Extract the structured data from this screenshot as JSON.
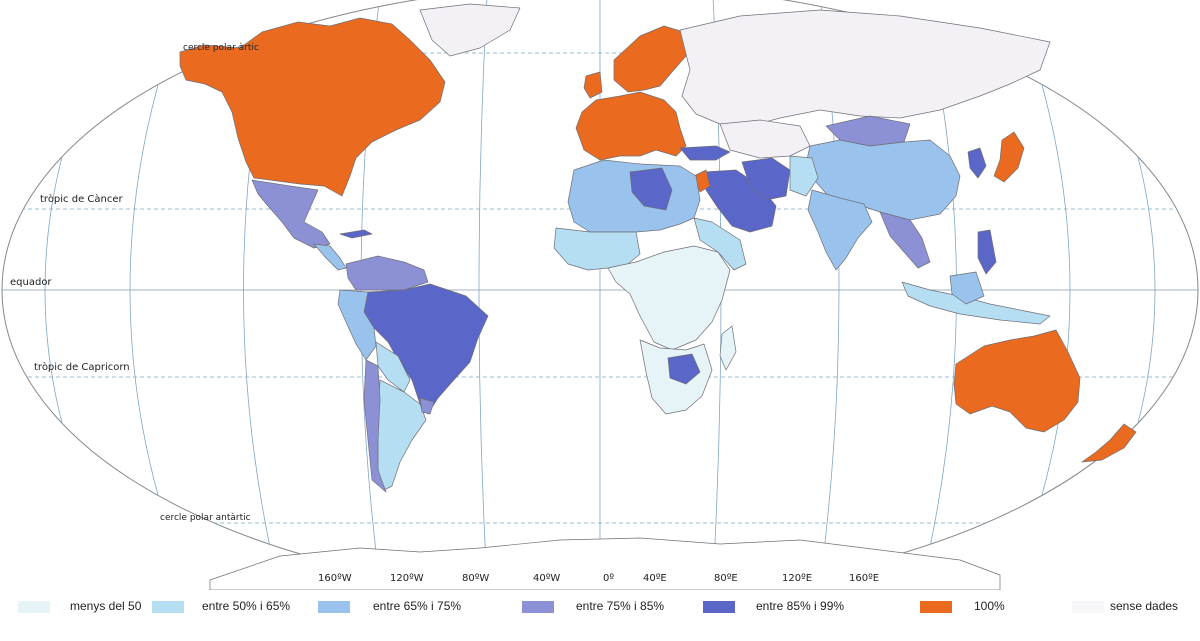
{
  "map": {
    "lines": {
      "arctic": "cercle polar àrtic",
      "cancer": "tròpic de Càncer",
      "equator": "equador",
      "capricorn": "tròpic de Capricorn",
      "antarctic": "cercle polar antàrtic"
    },
    "longitudes": [
      "160ºW",
      "120ºW",
      "80ºW",
      "40ºW",
      "0º",
      "40ºE",
      "80ºE",
      "120ºE",
      "160ºE"
    ]
  },
  "legend": {
    "items": [
      {
        "label": "menys del 50",
        "color": "#e6f3f7"
      },
      {
        "label": "entre 50% i 65%",
        "color": "#b6def2"
      },
      {
        "label": "entre 65% i 75%",
        "color": "#99c3ec"
      },
      {
        "label": "entre 75% i 85%",
        "color": "#8c91d6"
      },
      {
        "label": "entre 85% i 99%",
        "color": "#5a66c8"
      },
      {
        "label": "100%",
        "color": "#ea6a1f"
      },
      {
        "label": "sense dades",
        "color": "#f7f6f9"
      }
    ]
  },
  "colors": {
    "outline": "#7a7a82",
    "grid": "#7fa6c4",
    "unknown": "#f3f1f6"
  }
}
